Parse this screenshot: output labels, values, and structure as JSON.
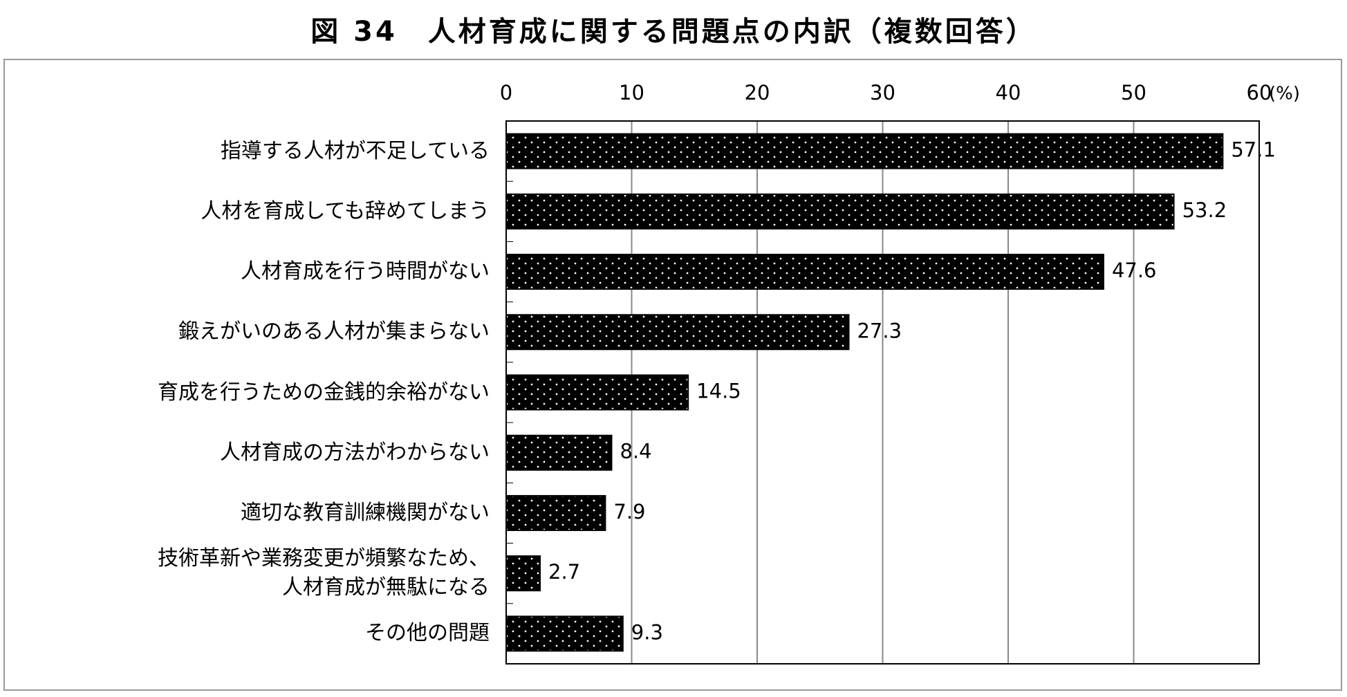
{
  "chart_data": {
    "type": "barh",
    "title": "図 34　人材育成に関する問題点の内訳（複数回答）",
    "categories": [
      "指導する人材が不足している",
      "人材を育成しても辞めてしまう",
      "人材育成を行う時間がない",
      "鍛えがいのある人材が集まらない",
      "育成を行うための金銭的余裕がない",
      "人材育成の方法がわからない",
      "適切な教育訓練機関がない",
      "技術革新や業務変更が頻繁なため、\n人材育成が無駄になる",
      "その他の問題"
    ],
    "values": [
      57.1,
      53.2,
      47.6,
      27.3,
      14.5,
      8.4,
      7.9,
      2.7,
      9.3
    ],
    "color": "#000000",
    "xlabel": "(%)",
    "xlim": [
      0,
      60
    ],
    "xticks": [
      0,
      10,
      20,
      30,
      40,
      50,
      60
    ],
    "grid": true
  }
}
